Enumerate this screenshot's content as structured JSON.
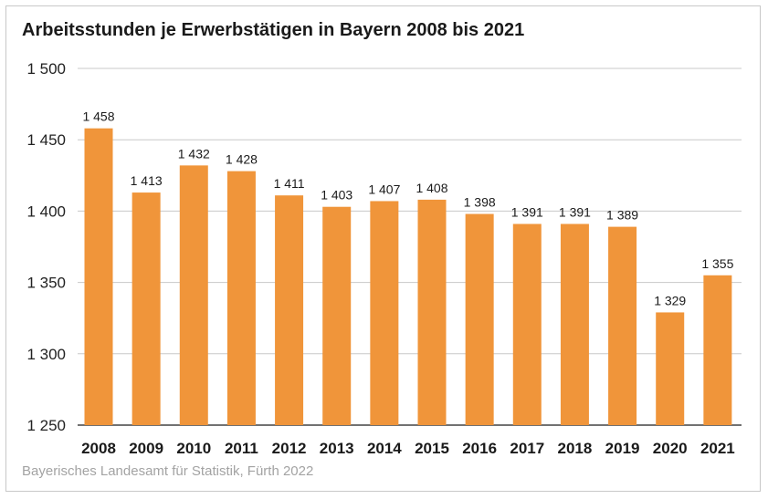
{
  "chart_data": {
    "type": "bar",
    "title": "Arbeitsstunden je Erwerbstätigen in Bayern 2008 bis 2021",
    "xlabel": "",
    "ylabel": "",
    "categories": [
      "2008",
      "2009",
      "2010",
      "2011",
      "2012",
      "2013",
      "2014",
      "2015",
      "2016",
      "2017",
      "2018",
      "2019",
      "2020",
      "2021"
    ],
    "values": [
      1458,
      1413,
      1432,
      1428,
      1411,
      1403,
      1407,
      1408,
      1398,
      1391,
      1391,
      1389,
      1329,
      1355
    ],
    "value_labels": [
      "1 458",
      "1 413",
      "1 432",
      "1 428",
      "1 411",
      "1 403",
      "1 407",
      "1 408",
      "1 398",
      "1 391",
      "1 391",
      "1 389",
      "1 329",
      "1 355"
    ],
    "ylim": [
      1250,
      1500
    ],
    "yticks": [
      1250,
      1300,
      1350,
      1400,
      1450,
      1500
    ],
    "ytick_labels": [
      "1 250",
      "1 300",
      "1 350",
      "1 400",
      "1 450",
      "1 500"
    ],
    "grid": true,
    "colors": {
      "bar": "#f0953a",
      "grid": "#c8c8c8",
      "axis": "#444444"
    }
  },
  "source": "Bayerisches Landesamt für Statistik, Fürth 2022"
}
